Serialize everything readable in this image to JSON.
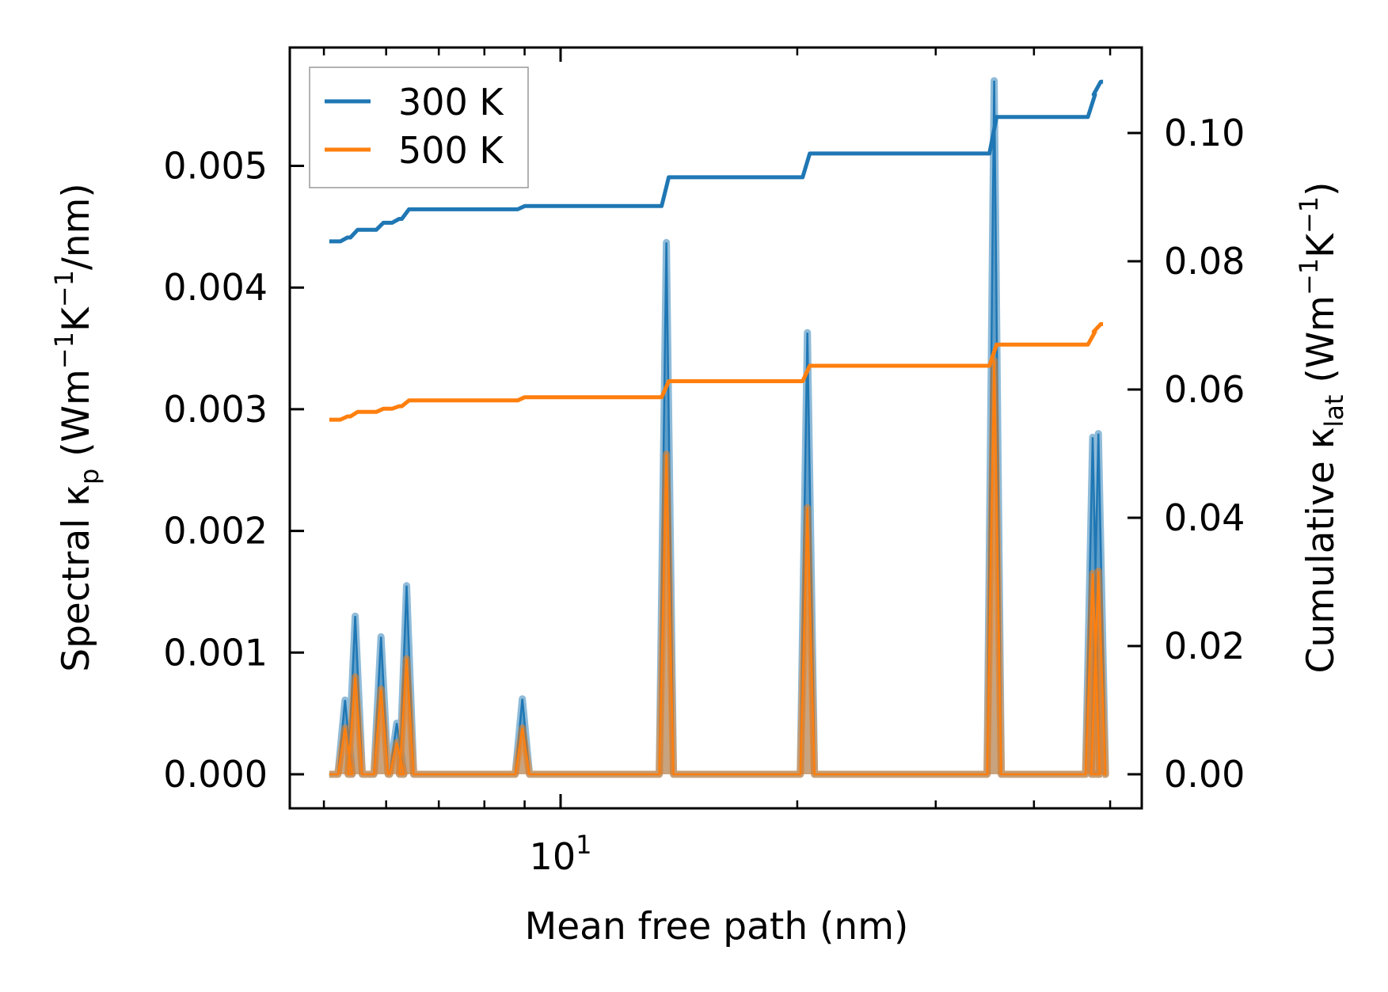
{
  "chart_data": {
    "type": "line",
    "xscale": "log",
    "xlim": [
      4.53,
      54.8
    ],
    "ylim_left": [
      -0.00026,
      0.0059
    ],
    "ylim_right": [
      -0.0053,
      0.1085
    ],
    "xlabel": "Mean free path (nm)",
    "ylabel_left": {
      "main": "Spectral κ",
      "sub": "p",
      "rest1": " (Wm",
      "sup1": "−1",
      "rest2": "K",
      "sup2": "−1",
      "rest3": "/nm)"
    },
    "ylabel_right": {
      "main": "Cumulative κ",
      "sub": "lat",
      "rest1": " (Wm",
      "sup1": "−1",
      "rest2": "K",
      "sup2": "−1",
      "rest3": ")"
    },
    "x_major_ticks": [
      {
        "value": 10,
        "base": "10",
        "exp": "1"
      }
    ],
    "x_minor_ticks": [
      5,
      6,
      7,
      8,
      9,
      20,
      30,
      40,
      50
    ],
    "yticks_left": [
      {
        "v": 0,
        "label": "0.000"
      },
      {
        "v": 0.001,
        "label": "0.001"
      },
      {
        "v": 0.002,
        "label": "0.002"
      },
      {
        "v": 0.003,
        "label": "0.003"
      },
      {
        "v": 0.004,
        "label": "0.004"
      },
      {
        "v": 0.005,
        "label": "0.005"
      }
    ],
    "yticks_right": [
      {
        "v": 0,
        "label": "0.00"
      },
      {
        "v": 0.02,
        "label": "0.02"
      },
      {
        "v": 0.04,
        "label": "0.04"
      },
      {
        "v": 0.06,
        "label": "0.06"
      },
      {
        "v": 0.08,
        "label": "0.08"
      },
      {
        "v": 0.1,
        "label": "0.10"
      }
    ],
    "legend": {
      "placement": "top-left",
      "entries": [
        {
          "label": "300 K",
          "color": "#1f77b4"
        },
        {
          "label": "500 K",
          "color": "#ff7f0e"
        }
      ]
    },
    "peaks_x": [
      5.32,
      5.48,
      5.91,
      6.19,
      6.37,
      8.94,
      13.63,
      20.6,
      35.6,
      47.5,
      48.3
    ],
    "x_start": 5.08,
    "x_end": 48.97,
    "series": [
      {
        "name": "300 K",
        "color": "#1f77b4",
        "spectral": [
          0.00061,
          0.0013,
          0.00113,
          0.00042,
          0.00155,
          0.00062,
          0.00437,
          0.00363,
          0.0057,
          0.00277,
          0.0028
        ],
        "cumulative_start": 0.0831,
        "cumulative_after_peak": [
          0.0837,
          0.0849,
          0.086,
          0.0866,
          0.0881,
          0.0886,
          0.0931,
          0.0968,
          0.1025,
          0.106,
          0.108
        ]
      },
      {
        "name": "500 K",
        "color": "#ff7f0e",
        "spectral": [
          0.00038,
          0.0008,
          0.0007,
          0.00026,
          0.00095,
          0.00038,
          0.00263,
          0.00219,
          0.0034,
          0.00165,
          0.00167
        ],
        "cumulative_start": 0.0553,
        "cumulative_after_peak": [
          0.0558,
          0.0565,
          0.057,
          0.0574,
          0.0583,
          0.0588,
          0.0613,
          0.0637,
          0.067,
          0.069,
          0.0702
        ]
      }
    ]
  }
}
